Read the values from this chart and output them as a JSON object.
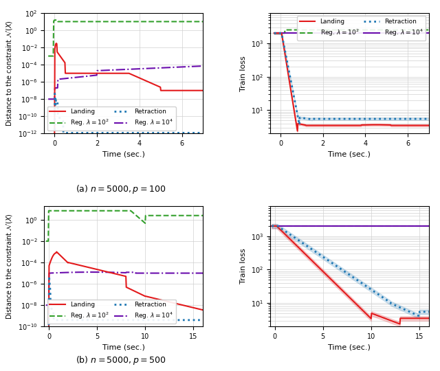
{
  "fig_width": 6.4,
  "fig_height": 5.4,
  "dpi": 100,
  "background_color": "#ffffff",
  "subplots": {
    "top_left": {
      "xlabel": "Time (sec.)",
      "ylabel": "Distance to the constraint $\\mathcal{N}(X)$",
      "xlim": [
        -0.5,
        7.0
      ],
      "ylim": [
        1e-12,
        100.0
      ],
      "xticks": [
        0,
        2,
        4,
        6
      ]
    },
    "top_right": {
      "xlabel": "Time (sec.)",
      "ylabel": "Train loss",
      "xlim": [
        -0.5,
        7.0
      ],
      "ylim": [
        2.0,
        8000
      ],
      "xticks": [
        0,
        2,
        4,
        6
      ]
    },
    "bottom_left": {
      "xlabel": "Time (sec.)",
      "ylabel": "Distance to the constraint $\\mathcal{N}(X)$",
      "xlim": [
        -0.5,
        16.0
      ],
      "ylim": [
        1e-10,
        20.0
      ],
      "xticks": [
        0,
        5,
        10,
        15
      ]
    },
    "bottom_right": {
      "xlabel": "Time (sec.)",
      "ylabel": "Train loss",
      "xlim": [
        -0.5,
        16.0
      ],
      "ylim": [
        2.0,
        8000
      ],
      "xticks": [
        0,
        5,
        10,
        15
      ]
    }
  },
  "caption_a": "(a) $n = 5000, p = 100$",
  "caption_b": "(b) $n = 5000, p = 500$",
  "colors": {
    "landing": "#e31a1c",
    "retraction": "#1f78b4",
    "reg_1e2": "#33a02c",
    "reg_1e4": "#6a0dad"
  },
  "legend": {
    "landing_label": "Landing",
    "retraction_label": "Retraction",
    "reg1e2_label": "Reg. $\\lambda = 10^2$",
    "reg1e4_label": "Reg. $\\lambda = 10^4$"
  }
}
